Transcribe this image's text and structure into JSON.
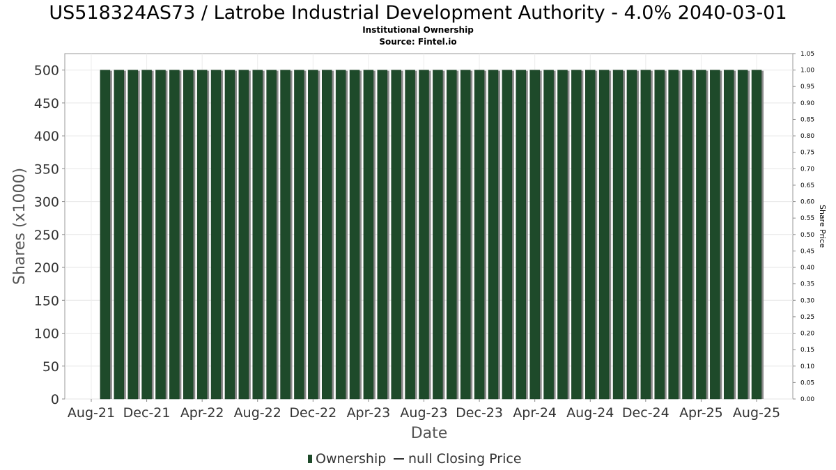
{
  "chart_data": {
    "type": "bar",
    "title": "US518324AS73 / Latrobe Industrial Development Authority - 4.0% 2040-03-01",
    "subtitle": "Institutional Ownership",
    "source": "Source: Fintel.io",
    "xlabel": "Date",
    "ylabel": "Shares (x1000)",
    "y2label": "Share Price",
    "ylim": [
      0,
      525
    ],
    "y2lim": [
      0,
      1.05
    ],
    "y_ticks": [
      "0",
      "50",
      "100",
      "150",
      "200",
      "250",
      "300",
      "350",
      "400",
      "450",
      "500"
    ],
    "y2_ticks": [
      "0.00",
      "0.05",
      "0.10",
      "0.15",
      "0.20",
      "0.25",
      "0.30",
      "0.35",
      "0.40",
      "0.45",
      "0.50",
      "0.55",
      "0.60",
      "0.65",
      "0.70",
      "0.75",
      "0.80",
      "0.85",
      "0.90",
      "0.95",
      "1.00",
      "1.05"
    ],
    "x_ticks": [
      "Aug-21",
      "Dec-21",
      "Apr-22",
      "Aug-22",
      "Dec-22",
      "Apr-23",
      "Aug-23",
      "Dec-23",
      "Apr-24",
      "Aug-24",
      "Dec-24",
      "Apr-25",
      "Aug-25"
    ],
    "grid": true,
    "legend_placement": "bottom",
    "series": [
      {
        "name": "Ownership",
        "color": "#1e4a2a",
        "categories": [
          "Sep-21",
          "Oct-21",
          "Nov-21",
          "Dec-21",
          "Jan-22",
          "Feb-22",
          "Mar-22",
          "Apr-22",
          "May-22",
          "Jun-22",
          "Jul-22",
          "Aug-22",
          "Sep-22",
          "Oct-22",
          "Nov-22",
          "Dec-22",
          "Jan-23",
          "Feb-23",
          "Mar-23",
          "Apr-23",
          "May-23",
          "Jun-23",
          "Jul-23",
          "Aug-23",
          "Sep-23",
          "Oct-23",
          "Nov-23",
          "Dec-23",
          "Jan-24",
          "Feb-24",
          "Mar-24",
          "Apr-24",
          "May-24",
          "Jun-24",
          "Jul-24",
          "Aug-24",
          "Sep-24",
          "Oct-24",
          "Nov-24",
          "Dec-24",
          "Jan-25",
          "Feb-25",
          "Mar-25",
          "Apr-25",
          "May-25",
          "Jun-25",
          "Jul-25",
          "Aug-25"
        ],
        "values": [
          500,
          500,
          500,
          500,
          500,
          500,
          500,
          500,
          500,
          500,
          500,
          500,
          500,
          500,
          500,
          500,
          500,
          500,
          500,
          500,
          500,
          500,
          500,
          500,
          500,
          500,
          500,
          500,
          500,
          500,
          500,
          500,
          500,
          500,
          500,
          500,
          500,
          500,
          500,
          500,
          500,
          500,
          500,
          500,
          500,
          500,
          500,
          500
        ]
      },
      {
        "name": "null Closing Price",
        "color": "#333333",
        "values": []
      }
    ]
  }
}
